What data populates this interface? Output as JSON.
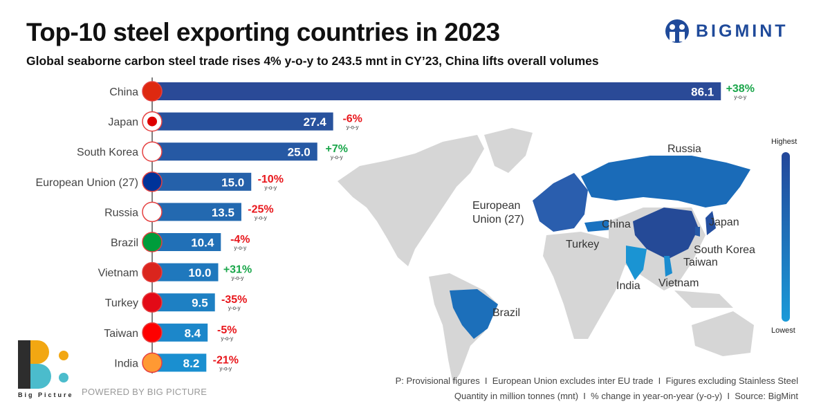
{
  "header": {
    "title": "Top-10 steel exporting countries in 2023",
    "subtitle": "Global seaborne carbon steel trade rises 4% y-o-y to 243.5 mnt in CY’23, China lifts overall volumes",
    "brand": "BIGMINT"
  },
  "chart_data": {
    "type": "bar",
    "orientation": "horizontal",
    "categories": [
      "China",
      "Japan",
      "South Korea",
      "European Union (27)",
      "Russia",
      "Brazil",
      "Vietnam",
      "Turkey",
      "Taiwan",
      "India"
    ],
    "values": [
      86.1,
      27.4,
      25.0,
      15.0,
      13.5,
      10.4,
      10.0,
      9.5,
      8.4,
      8.2
    ],
    "value_labels": [
      "86.1",
      "27.4",
      "25.0",
      "15.0",
      "13.5",
      "10.4",
      "10.0",
      "9.5",
      "8.4",
      "8.2"
    ],
    "changes": [
      "+38%",
      "-6%",
      "+7%",
      "-10%",
      "-25%",
      "-4%",
      "+31%",
      "-35%",
      "-5%",
      "-21%"
    ],
    "change_unit": "y-o-y",
    "colors": {
      "positive": "#1aa64a",
      "negative": "#e8161b",
      "bar_top": "#2a4a97",
      "bar_bottom": "#1a8fd0"
    }
  },
  "map": {
    "labels": [
      "Russia",
      "European Union (27)",
      "China",
      "Japan",
      "Turkey",
      "South Korea",
      "Taiwan",
      "India",
      "Vietnam",
      "Brazil"
    ],
    "legend_high": "Highest",
    "legend_low": "Lowest"
  },
  "footer": {
    "note1": "P: Provisional figures  I  European Union excludes inter EU trade  I  Figures excluding Stainless Steel",
    "note2": "Quantity in million tonnes (mnt)  I  % change in year-on-year (y-o-y)  I  Source: BigMint",
    "powered": "POWERED BY BIG PICTURE",
    "bp_logo": "Big Picture"
  }
}
